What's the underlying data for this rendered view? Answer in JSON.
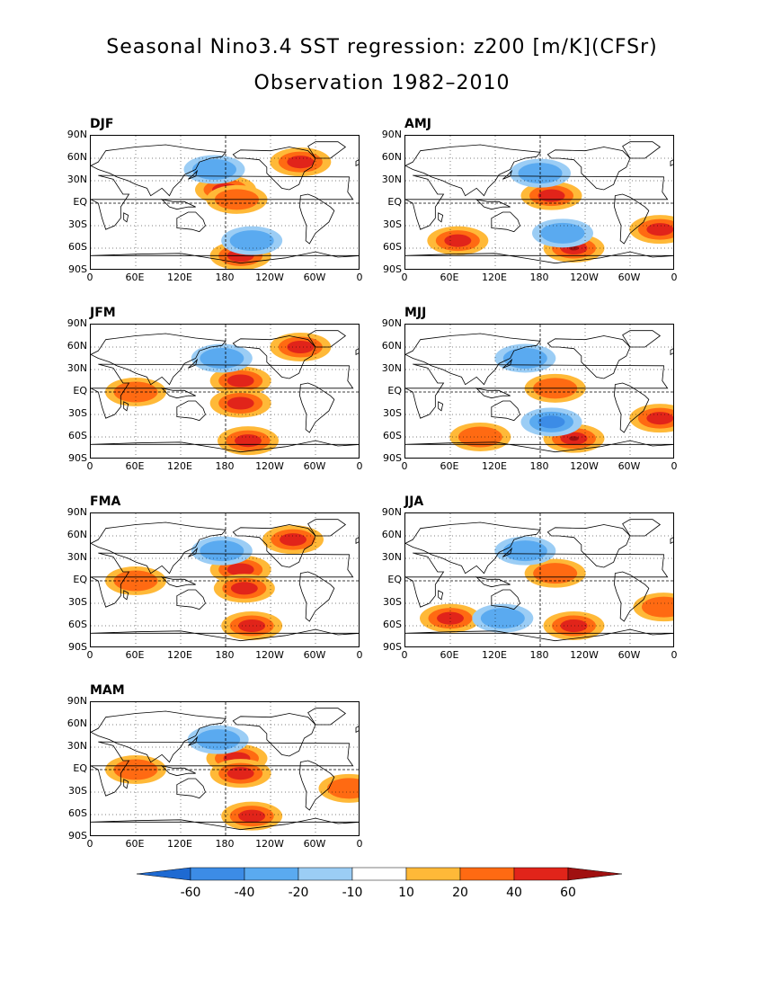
{
  "title_line1": "Seasonal Nino3.4 SST regression: z200 [m/K](CFSr)",
  "title_line2": "Observation 1982–2010",
  "chart_data": {
    "type": "heatmap",
    "variable": "z200",
    "units": "m/K",
    "x_ticks": [
      "0",
      "60E",
      "120E",
      "180",
      "120W",
      "60W",
      "0"
    ],
    "y_ticks": [
      "90N",
      "60N",
      "30N",
      "EQ",
      "30S",
      "60S",
      "90S"
    ],
    "xlim": [
      0,
      360
    ],
    "ylim": [
      -90,
      90
    ],
    "panels": [
      {
        "season": "DJF",
        "anomalies": [
          {
            "lon": 180,
            "lat": 18,
            "sign": "positive",
            "peak": 40
          },
          {
            "lon": 195,
            "lat": 5,
            "sign": "positive",
            "peak": 20
          },
          {
            "lon": 200,
            "lat": -70,
            "sign": "positive",
            "peak": 40
          },
          {
            "lon": 280,
            "lat": 55,
            "sign": "positive",
            "peak": 40
          },
          {
            "lon": 165,
            "lat": 45,
            "sign": "negative",
            "peak": -20
          },
          {
            "lon": 215,
            "lat": -50,
            "sign": "negative",
            "peak": -20
          }
        ]
      },
      {
        "season": "AMJ",
        "anomalies": [
          {
            "lon": 195,
            "lat": 10,
            "sign": "positive",
            "peak": 40
          },
          {
            "lon": 225,
            "lat": -60,
            "sign": "positive",
            "peak": 60
          },
          {
            "lon": 70,
            "lat": -50,
            "sign": "positive",
            "peak": 40
          },
          {
            "lon": 340,
            "lat": -35,
            "sign": "positive",
            "peak": 40
          },
          {
            "lon": 180,
            "lat": 40,
            "sign": "negative",
            "peak": -20
          },
          {
            "lon": 210,
            "lat": -40,
            "sign": "negative",
            "peak": -20
          }
        ]
      },
      {
        "season": "JFM",
        "anomalies": [
          {
            "lon": 200,
            "lat": 15,
            "sign": "positive",
            "peak": 40
          },
          {
            "lon": 200,
            "lat": -15,
            "sign": "positive",
            "peak": 40
          },
          {
            "lon": 210,
            "lat": -65,
            "sign": "positive",
            "peak": 40
          },
          {
            "lon": 280,
            "lat": 60,
            "sign": "positive",
            "peak": 40
          },
          {
            "lon": 60,
            "lat": 0,
            "sign": "positive",
            "peak": 20
          },
          {
            "lon": 175,
            "lat": 45,
            "sign": "negative",
            "peak": -20
          }
        ]
      },
      {
        "season": "MJJ",
        "anomalies": [
          {
            "lon": 225,
            "lat": -62,
            "sign": "positive",
            "peak": 60
          },
          {
            "lon": 200,
            "lat": 5,
            "sign": "positive",
            "peak": 20
          },
          {
            "lon": 100,
            "lat": -60,
            "sign": "positive",
            "peak": 20
          },
          {
            "lon": 340,
            "lat": -35,
            "sign": "positive",
            "peak": 40
          },
          {
            "lon": 195,
            "lat": -40,
            "sign": "negative",
            "peak": -40
          },
          {
            "lon": 160,
            "lat": 45,
            "sign": "negative",
            "peak": -20
          }
        ]
      },
      {
        "season": "FMA",
        "anomalies": [
          {
            "lon": 200,
            "lat": 15,
            "sign": "positive",
            "peak": 40
          },
          {
            "lon": 205,
            "lat": -10,
            "sign": "positive",
            "peak": 40
          },
          {
            "lon": 215,
            "lat": -60,
            "sign": "positive",
            "peak": 40
          },
          {
            "lon": 270,
            "lat": 55,
            "sign": "positive",
            "peak": 40
          },
          {
            "lon": 60,
            "lat": 0,
            "sign": "positive",
            "peak": 20
          },
          {
            "lon": 175,
            "lat": 40,
            "sign": "negative",
            "peak": -20
          }
        ]
      },
      {
        "season": "JJA",
        "anomalies": [
          {
            "lon": 225,
            "lat": -60,
            "sign": "positive",
            "peak": 40
          },
          {
            "lon": 60,
            "lat": -50,
            "sign": "positive",
            "peak": 40
          },
          {
            "lon": 200,
            "lat": 10,
            "sign": "positive",
            "peak": 20
          },
          {
            "lon": 345,
            "lat": -35,
            "sign": "positive",
            "peak": 20
          },
          {
            "lon": 130,
            "lat": -50,
            "sign": "negative",
            "peak": -20
          },
          {
            "lon": 160,
            "lat": 40,
            "sign": "negative",
            "peak": -20
          }
        ]
      },
      {
        "season": "MAM",
        "anomalies": [
          {
            "lon": 195,
            "lat": 15,
            "sign": "positive",
            "peak": 40
          },
          {
            "lon": 200,
            "lat": -5,
            "sign": "positive",
            "peak": 40
          },
          {
            "lon": 215,
            "lat": -62,
            "sign": "positive",
            "peak": 40
          },
          {
            "lon": 60,
            "lat": 0,
            "sign": "positive",
            "peak": 20
          },
          {
            "lon": 345,
            "lat": -25,
            "sign": "positive",
            "peak": 20
          },
          {
            "lon": 170,
            "lat": 40,
            "sign": "negative",
            "peak": -20
          }
        ]
      }
    ],
    "colorbar": {
      "levels": [
        "-60",
        "-40",
        "-20",
        "-10",
        "10",
        "20",
        "40",
        "60"
      ],
      "colors": [
        "#1e6ad2",
        "#3c8ce6",
        "#5aaaf0",
        "#9bcdf5",
        "#ffffff",
        "#ffb938",
        "#ff6a12",
        "#e1241a",
        "#a01010"
      ]
    }
  },
  "colors": {
    "pos1": "#ffb938",
    "pos2": "#ff6a12",
    "pos3": "#e1241a",
    "pos4": "#a01010",
    "neg1": "#9bcdf5",
    "neg2": "#5aaaf0",
    "neg3": "#3c8ce6",
    "neg4": "#1e6ad2"
  }
}
